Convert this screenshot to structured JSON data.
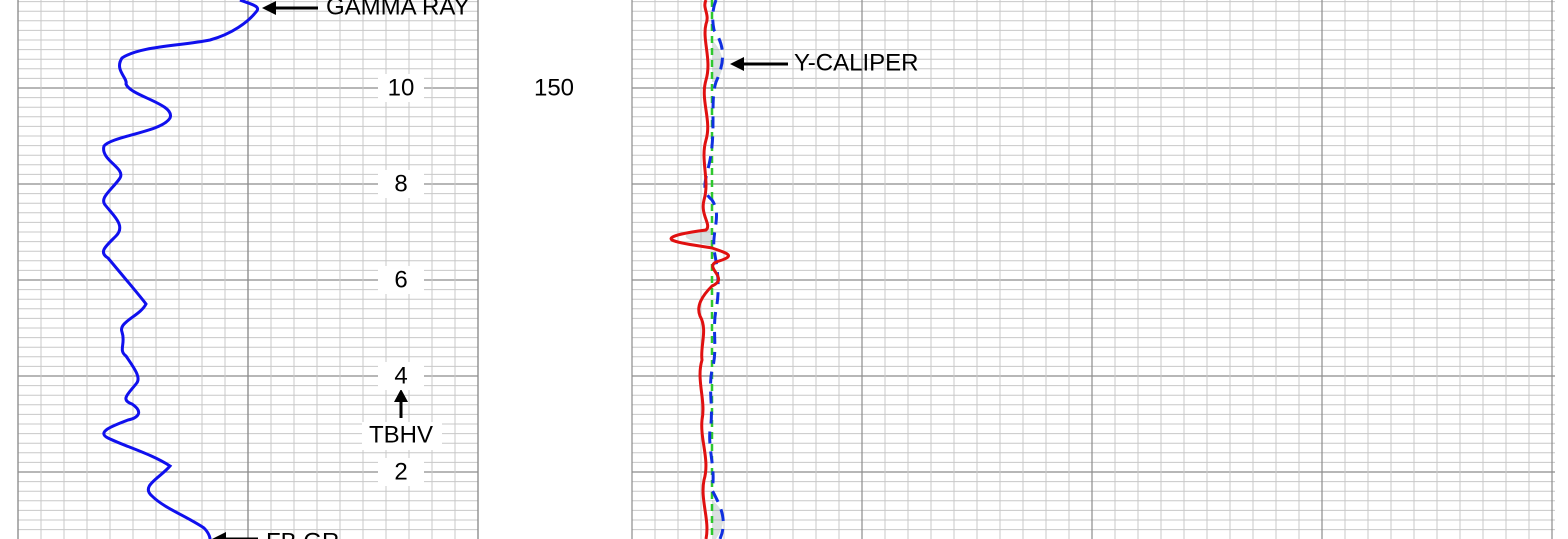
{
  "track_left": {
    "curve_label": "GAMMA RAY",
    "bottom_label": "FB GR",
    "depth_labels": [
      "10",
      "8",
      "6",
      "4",
      "2"
    ],
    "marker_label": "TBHV"
  },
  "track_right": {
    "depth_label": "150",
    "curve_label": "Y-CALIPER"
  }
}
